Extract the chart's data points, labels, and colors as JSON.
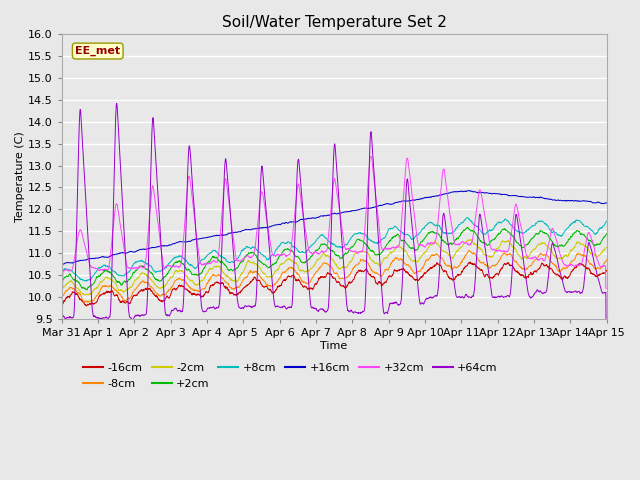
{
  "title": "Soil/Water Temperature Set 2",
  "xlabel": "Time",
  "ylabel": "Temperature (C)",
  "ylim": [
    9.5,
    16.0
  ],
  "yticks": [
    9.5,
    10.0,
    10.5,
    11.0,
    11.5,
    12.0,
    12.5,
    13.0,
    13.5,
    14.0,
    14.5,
    15.0,
    15.5,
    16.0
  ],
  "xtick_labels": [
    "Mar 31",
    "Apr 1",
    "Apr 2",
    "Apr 3",
    "Apr 4",
    "Apr 5",
    "Apr 6",
    "Apr 7",
    "Apr 8",
    "Apr 9",
    "Apr 10",
    "Apr 11",
    "Apr 12",
    "Apr 13",
    "Apr 14",
    "Apr 15"
  ],
  "series": {
    "neg16cm": {
      "label": "-16cm",
      "color": "#cc0000"
    },
    "neg8cm": {
      "label": "-8cm",
      "color": "#ff8800"
    },
    "neg2cm": {
      "label": "-2cm",
      "color": "#cccc00"
    },
    "pos2cm": {
      "label": "+2cm",
      "color": "#00bb00"
    },
    "pos8cm": {
      "label": "+8cm",
      "color": "#00bbbb"
    },
    "pos16cm": {
      "label": "+16cm",
      "color": "#0000cc"
    },
    "pos32cm": {
      "label": "+32cm",
      "color": "#ff44ff"
    },
    "pos64cm": {
      "label": "+64cm",
      "color": "#9900cc"
    }
  },
  "annotation_label": "EE_met",
  "annotation_bg": "#ffffcc",
  "annotation_border": "#999900",
  "annotation_text_color": "#990000",
  "plot_bg": "#e8e8e8",
  "fig_bg": "#e8e8e8",
  "n_points": 2016,
  "seed": 42
}
